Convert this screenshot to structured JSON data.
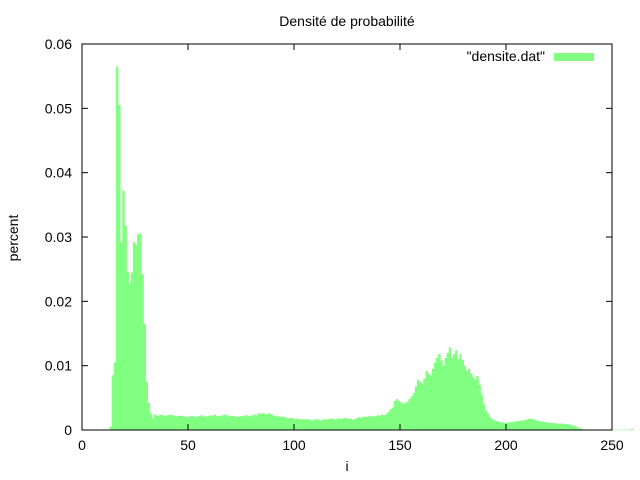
{
  "chart_data": {
    "type": "bar",
    "title": "Densité de probabilité",
    "xlabel": "i",
    "ylabel": "percent",
    "xlim": [
      0,
      250
    ],
    "ylim": [
      0,
      0.06
    ],
    "xticks": [
      "0",
      "50",
      "100",
      "150",
      "200",
      "250"
    ],
    "yticks": [
      "0",
      "0.01",
      "0.02",
      "0.03",
      "0.04",
      "0.05",
      "0.06"
    ],
    "grid": false,
    "legend": "top-right",
    "bar_color": "#80ff80",
    "series": [
      {
        "name": "\"densite.dat\"",
        "x0": 0,
        "values": [
          0,
          0,
          0,
          0,
          0,
          0,
          0,
          0,
          0,
          0,
          0,
          0,
          0,
          0.0005,
          0.0085,
          0.0105,
          0.0565,
          0.0505,
          0.0292,
          0.0372,
          0.0318,
          0.0245,
          0.0228,
          0.0245,
          0.0292,
          0.0288,
          0.0305,
          0.0305,
          0.0242,
          0.0165,
          0.0075,
          0.0042,
          0.0026,
          0.0018,
          0.0024,
          0.0022,
          0.0023,
          0.0024,
          0.0022,
          0.0022,
          0.0023,
          0.0024,
          0.0023,
          0.0022,
          0.0021,
          0.0022,
          0.0022,
          0.0022,
          0.0021,
          0.002,
          0.0021,
          0.0022,
          0.0021,
          0.002,
          0.0021,
          0.0022,
          0.0023,
          0.0021,
          0.0021,
          0.0022,
          0.0023,
          0.0022,
          0.0024,
          0.0022,
          0.0021,
          0.0022,
          0.0023,
          0.0024,
          0.0023,
          0.0021,
          0.0022,
          0.0022,
          0.0021,
          0.002,
          0.0021,
          0.0022,
          0.0022,
          0.0023,
          0.0022,
          0.0021,
          0.0023,
          0.0024,
          0.0023,
          0.0026,
          0.0025,
          0.0026,
          0.0024,
          0.0025,
          0.0026,
          0.0024,
          0.0022,
          0.0021,
          0.0022,
          0.002,
          0.0021,
          0.002,
          0.0019,
          0.0018,
          0.0019,
          0.0018,
          0.0017,
          0.0018,
          0.0017,
          0.0016,
          0.0017,
          0.0016,
          0.0017,
          0.0016,
          0.0015,
          0.0016,
          0.0017,
          0.0016,
          0.0015,
          0.0016,
          0.0017,
          0.0016,
          0.0017,
          0.0018,
          0.0017,
          0.0016,
          0.0017,
          0.0018,
          0.0017,
          0.0018,
          0.0019,
          0.0018,
          0.0017,
          0.0016,
          0.0017,
          0.0018,
          0.002,
          0.0019,
          0.002,
          0.0021,
          0.002,
          0.0021,
          0.0022,
          0.0021,
          0.0022,
          0.0023,
          0.0022,
          0.0024,
          0.0023,
          0.0025,
          0.0028,
          0.0032,
          0.0035,
          0.0045,
          0.0048,
          0.0045,
          0.0043,
          0.004,
          0.0042,
          0.0044,
          0.0048,
          0.0052,
          0.0058,
          0.0068,
          0.0078,
          0.0075,
          0.0072,
          0.008,
          0.0092,
          0.0088,
          0.0085,
          0.0095,
          0.0105,
          0.0112,
          0.0118,
          0.0108,
          0.01,
          0.0112,
          0.012,
          0.0128,
          0.0112,
          0.0118,
          0.0124,
          0.011,
          0.0118,
          0.0109,
          0.01,
          0.0092,
          0.0095,
          0.0088,
          0.0082,
          0.0078,
          0.0084,
          0.007,
          0.0055,
          0.004,
          0.003,
          0.0025,
          0.002,
          0.0017,
          0.0015,
          0.0014,
          0.0013,
          0.0012,
          0.0012,
          0.0011,
          0.0011,
          0.0012,
          0.0012,
          0.0013,
          0.0013,
          0.0014,
          0.0014,
          0.0015,
          0.0015,
          0.0016,
          0.0017,
          0.0018,
          0.0017,
          0.0016,
          0.0015,
          0.0014,
          0.0013,
          0.0013,
          0.0012,
          0.0012,
          0.0011,
          0.0011,
          0.0011,
          0.001,
          0.001,
          0.001,
          0.001,
          0.0009,
          0.0009,
          0.0009,
          0.0008,
          0.0007,
          0.0006,
          0.0005,
          0.0003,
          0.0002,
          0.0001,
          5e-05,
          5e-05,
          5e-05,
          5e-05,
          5e-05,
          5e-05,
          5e-05,
          5e-05,
          5e-05,
          5e-05,
          5e-05,
          5e-05,
          5e-05,
          5e-05,
          5e-05,
          5e-05,
          5e-05,
          5e-05,
          5e-05,
          5e-05,
          5e-05,
          5e-05,
          0.0002
        ]
      }
    ]
  }
}
